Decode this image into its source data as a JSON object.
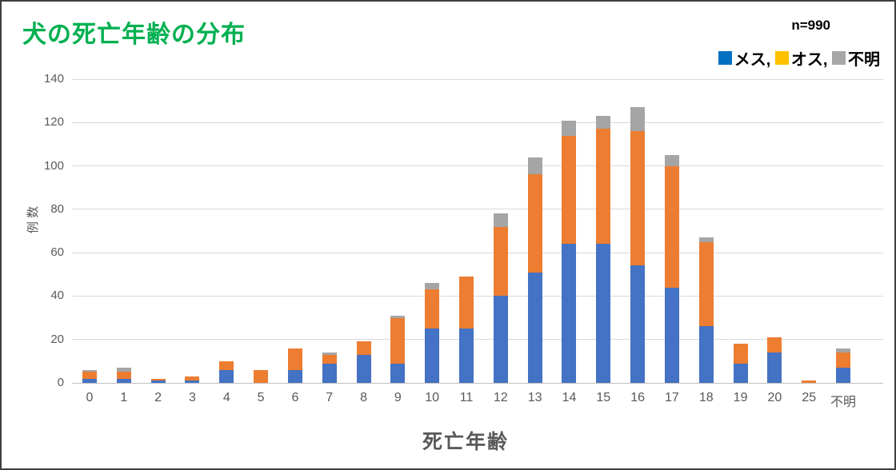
{
  "title": "犬の死亡年齢の分布",
  "title_color": "#00b050",
  "annotation": "n=990",
  "legend": {
    "items": [
      {
        "label": "メス",
        "suffix": ", ",
        "swatch_color": "#0070c0"
      },
      {
        "label": "オス",
        "suffix": ", ",
        "swatch_color": "#ffc000"
      },
      {
        "label": "不明",
        "suffix": "",
        "swatch_color": "#a6a6a6"
      }
    ]
  },
  "chart_data": {
    "type": "bar",
    "stacked": true,
    "title": "犬の死亡年齢の分布",
    "xlabel": "死亡年齢",
    "ylabel": "例 数",
    "ylim": [
      0,
      140
    ],
    "ytick_step": 20,
    "grid": true,
    "legend_position": "top-right",
    "sample_size_label": "n=990",
    "categories": [
      "0",
      "1",
      "2",
      "3",
      "4",
      "5",
      "6",
      "7",
      "8",
      "9",
      "10",
      "11",
      "12",
      "13",
      "14",
      "15",
      "16",
      "17",
      "18",
      "19",
      "20",
      "25",
      "不明"
    ],
    "series": [
      {
        "name": "メス",
        "color": "#4472c4",
        "values": [
          2,
          2,
          1,
          1,
          6,
          0,
          6,
          9,
          13,
          9,
          25,
          25,
          40,
          51,
          64,
          64,
          54,
          44,
          26,
          9,
          14,
          0,
          7
        ]
      },
      {
        "name": "オス",
        "color": "#ed7d31",
        "values": [
          3,
          3,
          1,
          2,
          4,
          6,
          10,
          4,
          6,
          21,
          18,
          24,
          32,
          45,
          50,
          53,
          62,
          56,
          39,
          9,
          7,
          1,
          7
        ]
      },
      {
        "name": "不明",
        "color": "#a5a5a5",
        "values": [
          1,
          2,
          0,
          0,
          0,
          0,
          0,
          1,
          0,
          1,
          3,
          0,
          6,
          8,
          7,
          6,
          11,
          5,
          2,
          0,
          0,
          0,
          2
        ]
      }
    ],
    "totals": [
      6,
      7,
      2,
      3,
      10,
      6,
      16,
      14,
      19,
      31,
      46,
      49,
      78,
      104,
      121,
      123,
      127,
      105,
      67,
      18,
      21,
      1,
      16
    ]
  },
  "axis_colors": {
    "tick_text": "#595959",
    "gridline": "#d9d9d9",
    "baseline": "#bfbfbf"
  }
}
